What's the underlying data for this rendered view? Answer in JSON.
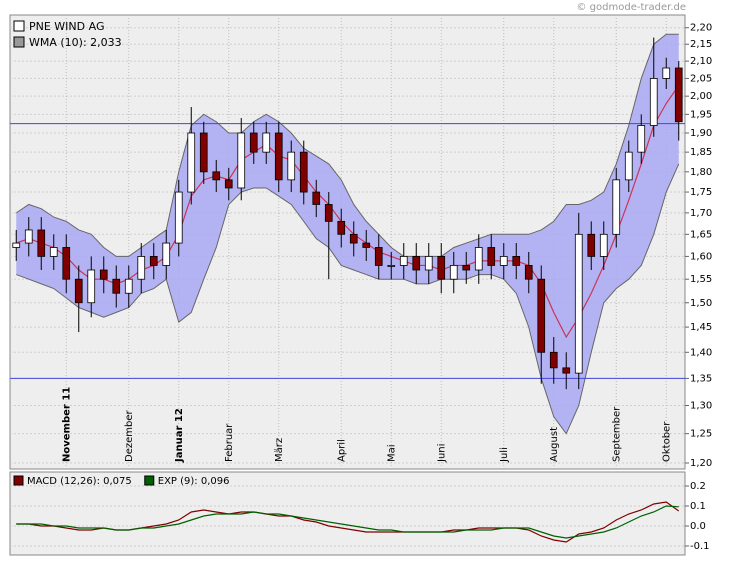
{
  "source": "© godmode-trader.de",
  "chart_data": [
    {
      "type": "candlestick",
      "name": "PNE WIND AG",
      "legend_color": "#ffffff",
      "categories": [
        null,
        null,
        null,
        null,
        "November 11",
        null,
        null,
        null,
        null,
        "Dezember",
        null,
        null,
        null,
        "Januar 12",
        null,
        null,
        null,
        "Februar",
        null,
        null,
        null,
        "März",
        null,
        null,
        null,
        null,
        "April",
        null,
        null,
        null,
        "Mai",
        null,
        null,
        null,
        "Juni",
        null,
        null,
        null,
        null,
        "Juli",
        null,
        null,
        null,
        "August",
        null,
        null,
        null,
        null,
        "September",
        null,
        null,
        null,
        "Oktober",
        null
      ],
      "open": [
        1.62,
        1.63,
        1.66,
        1.6,
        1.62,
        1.55,
        1.5,
        1.57,
        1.55,
        1.52,
        1.55,
        1.6,
        1.58,
        1.63,
        1.75,
        1.9,
        1.8,
        1.78,
        1.76,
        1.9,
        1.85,
        1.9,
        1.78,
        1.85,
        1.75,
        1.72,
        1.68,
        1.65,
        1.63,
        1.62,
        1.58,
        1.58,
        1.6,
        1.57,
        1.6,
        1.55,
        1.58,
        1.57,
        1.62,
        1.58,
        1.6,
        1.58,
        1.55,
        1.4,
        1.37,
        1.36,
        1.65,
        1.6,
        1.65,
        1.78,
        1.85,
        1.92,
        2.05,
        2.08
      ],
      "high": [
        1.66,
        1.69,
        1.69,
        1.65,
        1.65,
        1.58,
        1.6,
        1.6,
        1.58,
        1.58,
        1.63,
        1.63,
        1.66,
        1.78,
        1.97,
        1.93,
        1.83,
        1.81,
        1.94,
        1.93,
        1.93,
        1.93,
        1.88,
        1.88,
        1.78,
        1.75,
        1.71,
        1.68,
        1.66,
        1.65,
        1.61,
        1.63,
        1.63,
        1.63,
        1.63,
        1.61,
        1.61,
        1.65,
        1.65,
        1.63,
        1.63,
        1.61,
        1.58,
        1.43,
        1.4,
        1.7,
        1.68,
        1.68,
        1.81,
        1.88,
        1.95,
        2.17,
        2.11,
        2.1
      ],
      "low": [
        1.59,
        1.6,
        1.57,
        1.57,
        1.52,
        1.44,
        1.47,
        1.52,
        1.49,
        1.49,
        1.52,
        1.55,
        1.55,
        1.6,
        1.72,
        1.77,
        1.75,
        1.73,
        1.73,
        1.82,
        1.82,
        1.75,
        1.75,
        1.72,
        1.69,
        1.55,
        1.62,
        1.6,
        1.59,
        1.55,
        1.55,
        1.55,
        1.54,
        1.54,
        1.52,
        1.52,
        1.54,
        1.54,
        1.55,
        1.55,
        1.55,
        1.52,
        1.34,
        1.34,
        1.33,
        1.33,
        1.57,
        1.57,
        1.62,
        1.75,
        1.82,
        1.89,
        2.02,
        1.88
      ],
      "close": [
        1.63,
        1.66,
        1.6,
        1.62,
        1.55,
        1.5,
        1.57,
        1.55,
        1.52,
        1.55,
        1.6,
        1.58,
        1.63,
        1.75,
        1.9,
        1.8,
        1.78,
        1.76,
        1.9,
        1.85,
        1.9,
        1.78,
        1.85,
        1.75,
        1.72,
        1.68,
        1.65,
        1.63,
        1.62,
        1.58,
        1.58,
        1.6,
        1.57,
        1.6,
        1.55,
        1.58,
        1.57,
        1.62,
        1.58,
        1.6,
        1.58,
        1.55,
        1.4,
        1.37,
        1.36,
        1.65,
        1.6,
        1.65,
        1.78,
        1.85,
        1.92,
        2.05,
        2.08,
        1.93
      ],
      "up_color": "#ffffff",
      "down_color": "#800000",
      "band": {
        "color": "#a8a8f4",
        "line_color": "#666666",
        "upper": [
          1.7,
          1.72,
          1.71,
          1.69,
          1.68,
          1.66,
          1.65,
          1.62,
          1.6,
          1.6,
          1.62,
          1.64,
          1.66,
          1.8,
          1.92,
          1.95,
          1.93,
          1.9,
          1.9,
          1.93,
          1.95,
          1.93,
          1.9,
          1.86,
          1.84,
          1.82,
          1.78,
          1.72,
          1.68,
          1.65,
          1.62,
          1.6,
          1.6,
          1.6,
          1.6,
          1.62,
          1.63,
          1.64,
          1.65,
          1.65,
          1.65,
          1.65,
          1.66,
          1.68,
          1.72,
          1.72,
          1.73,
          1.75,
          1.82,
          1.92,
          2.05,
          2.15,
          2.18,
          2.18
        ],
        "lower": [
          1.56,
          1.55,
          1.54,
          1.53,
          1.51,
          1.49,
          1.48,
          1.47,
          1.48,
          1.49,
          1.52,
          1.53,
          1.55,
          1.46,
          1.48,
          1.55,
          1.62,
          1.72,
          1.75,
          1.76,
          1.76,
          1.74,
          1.72,
          1.68,
          1.64,
          1.62,
          1.58,
          1.57,
          1.56,
          1.55,
          1.55,
          1.55,
          1.54,
          1.54,
          1.55,
          1.55,
          1.55,
          1.56,
          1.56,
          1.55,
          1.52,
          1.45,
          1.35,
          1.28,
          1.25,
          1.3,
          1.4,
          1.5,
          1.53,
          1.55,
          1.58,
          1.65,
          1.75,
          1.82
        ]
      },
      "overlays": [
        {
          "name": "WMA (10): 2,033",
          "color": "#cc3355",
          "legend_color": "#999999",
          "values": [
            1.63,
            1.64,
            1.63,
            1.62,
            1.6,
            1.57,
            1.55,
            1.55,
            1.54,
            1.55,
            1.57,
            1.58,
            1.6,
            1.65,
            1.74,
            1.78,
            1.79,
            1.78,
            1.83,
            1.85,
            1.87,
            1.84,
            1.83,
            1.79,
            1.75,
            1.72,
            1.68,
            1.65,
            1.63,
            1.61,
            1.6,
            1.59,
            1.58,
            1.58,
            1.57,
            1.58,
            1.58,
            1.59,
            1.59,
            1.59,
            1.59,
            1.58,
            1.54,
            1.48,
            1.43,
            1.47,
            1.52,
            1.58,
            1.65,
            1.73,
            1.82,
            1.92,
            1.98,
            2.03
          ]
        }
      ],
      "hlines": [
        1.925,
        1.35
      ],
      "hline_color": "#4444dd",
      "log_scale": true,
      "grid": true,
      "ylim": [
        1.19,
        2.23
      ],
      "yticks": [
        {
          "value": 1.2,
          "label": "1,20"
        },
        {
          "value": 1.25,
          "label": "1,25"
        },
        {
          "value": 1.3,
          "label": "1,30"
        },
        {
          "value": 1.35,
          "label": "1,35"
        },
        {
          "value": 1.4,
          "label": "1,40"
        },
        {
          "value": 1.45,
          "label": "1,45"
        },
        {
          "value": 1.5,
          "label": "1,50"
        },
        {
          "value": 1.55,
          "label": "1,55"
        },
        {
          "value": 1.6,
          "label": "1,60"
        },
        {
          "value": 1.65,
          "label": "1,65"
        },
        {
          "value": 1.7,
          "label": "1,70"
        },
        {
          "value": 1.75,
          "label": "1,75"
        },
        {
          "value": 1.8,
          "label": "1,80"
        },
        {
          "value": 1.85,
          "label": "1,85"
        },
        {
          "value": 1.9,
          "label": "1,90"
        },
        {
          "value": 1.95,
          "label": "1,95"
        },
        {
          "value": 2.0,
          "label": "2,00"
        },
        {
          "value": 2.05,
          "label": "2,05"
        },
        {
          "value": 2.1,
          "label": "2,10"
        },
        {
          "value": 2.15,
          "label": "2,15"
        },
        {
          "value": 2.2,
          "label": "2,20"
        }
      ]
    },
    {
      "type": "line",
      "series": [
        {
          "name": "MACD (12,26): 0,075",
          "color": "#800000",
          "values": [
            0.01,
            0.01,
            0.0,
            0.0,
            -0.01,
            -0.02,
            -0.02,
            -0.01,
            -0.02,
            -0.02,
            -0.01,
            0.0,
            0.01,
            0.03,
            0.07,
            0.08,
            0.07,
            0.06,
            0.07,
            0.07,
            0.06,
            0.05,
            0.05,
            0.03,
            0.02,
            0.0,
            -0.01,
            -0.02,
            -0.03,
            -0.03,
            -0.03,
            -0.03,
            -0.03,
            -0.03,
            -0.03,
            -0.02,
            -0.02,
            -0.01,
            -0.01,
            -0.01,
            -0.01,
            -0.02,
            -0.05,
            -0.07,
            -0.08,
            -0.04,
            -0.03,
            -0.01,
            0.03,
            0.06,
            0.08,
            0.11,
            0.12,
            0.075
          ]
        },
        {
          "name": "EXP (9): 0,096",
          "color": "#006000",
          "values": [
            0.01,
            0.01,
            0.01,
            0.0,
            0.0,
            -0.01,
            -0.01,
            -0.01,
            -0.02,
            -0.02,
            -0.01,
            -0.01,
            0.0,
            0.01,
            0.03,
            0.05,
            0.06,
            0.06,
            0.06,
            0.07,
            0.06,
            0.06,
            0.05,
            0.04,
            0.03,
            0.02,
            0.01,
            0.0,
            -0.01,
            -0.02,
            -0.02,
            -0.03,
            -0.03,
            -0.03,
            -0.03,
            -0.03,
            -0.02,
            -0.02,
            -0.02,
            -0.01,
            -0.01,
            -0.01,
            -0.03,
            -0.05,
            -0.06,
            -0.05,
            -0.04,
            -0.03,
            -0.01,
            0.02,
            0.05,
            0.07,
            0.1,
            0.096
          ]
        }
      ],
      "grid": true,
      "ylim": [
        -0.13,
        0.25
      ],
      "yticks": [
        -0.1,
        {
          "value": 0.0,
          "label": "0.0"
        },
        0.1,
        0.2
      ]
    }
  ]
}
